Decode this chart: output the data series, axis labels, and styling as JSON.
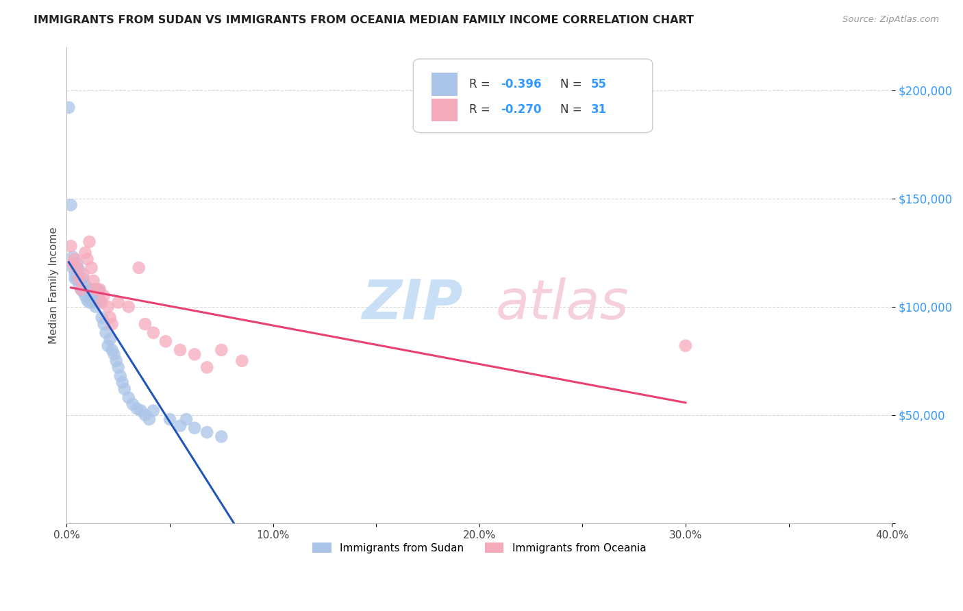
{
  "title": "IMMIGRANTS FROM SUDAN VS IMMIGRANTS FROM OCEANIA MEDIAN FAMILY INCOME CORRELATION CHART",
  "source": "Source: ZipAtlas.com",
  "ylabel": "Median Family Income",
  "xlim": [
    0.0,
    0.4
  ],
  "ylim": [
    0,
    220000
  ],
  "yticks": [
    0,
    50000,
    100000,
    150000,
    200000
  ],
  "ytick_labels": [
    "",
    "$50,000",
    "$100,000",
    "$150,000",
    "$200,000"
  ],
  "xtick_vals": [
    0.0,
    0.05,
    0.1,
    0.15,
    0.2,
    0.25,
    0.3,
    0.35,
    0.4
  ],
  "xtick_labels": [
    "0.0%",
    "",
    "10.0%",
    "",
    "20.0%",
    "",
    "30.0%",
    "",
    "40.0%"
  ],
  "background_color": "#ffffff",
  "grid_color": "#d8d8d8",
  "sudan_color": "#aac4e8",
  "oceania_color": "#f5aabc",
  "sudan_line_color": "#2255bb",
  "oceania_line_color": "#e84070",
  "watermark_zip_color": "#c8dff5",
  "watermark_atlas_color": "#f5d0dc",
  "sudan_points_x": [
    0.001,
    0.002,
    0.003,
    0.003,
    0.004,
    0.004,
    0.005,
    0.005,
    0.006,
    0.006,
    0.007,
    0.007,
    0.008,
    0.008,
    0.009,
    0.009,
    0.01,
    0.01,
    0.011,
    0.011,
    0.012,
    0.012,
    0.013,
    0.013,
    0.014,
    0.014,
    0.015,
    0.015,
    0.016,
    0.016,
    0.017,
    0.018,
    0.019,
    0.02,
    0.021,
    0.022,
    0.023,
    0.024,
    0.025,
    0.026,
    0.027,
    0.028,
    0.03,
    0.032,
    0.034,
    0.036,
    0.038,
    0.04,
    0.042,
    0.05,
    0.055,
    0.058,
    0.062,
    0.068,
    0.075
  ],
  "sudan_points_y": [
    192000,
    147000,
    123000,
    118000,
    115000,
    113000,
    120000,
    113000,
    117000,
    110000,
    112000,
    108000,
    113000,
    107000,
    110000,
    105000,
    108000,
    103000,
    106000,
    102000,
    108000,
    103000,
    107000,
    102000,
    108000,
    100000,
    108000,
    104000,
    107000,
    103000,
    95000,
    92000,
    88000,
    82000,
    85000,
    80000,
    78000,
    75000,
    72000,
    68000,
    65000,
    62000,
    58000,
    55000,
    53000,
    52000,
    50000,
    48000,
    52000,
    48000,
    45000,
    48000,
    44000,
    42000,
    40000
  ],
  "oceania_points_x": [
    0.002,
    0.003,
    0.004,
    0.005,
    0.006,
    0.007,
    0.008,
    0.009,
    0.01,
    0.011,
    0.012,
    0.013,
    0.014,
    0.016,
    0.017,
    0.018,
    0.02,
    0.021,
    0.022,
    0.025,
    0.03,
    0.035,
    0.038,
    0.042,
    0.048,
    0.055,
    0.062,
    0.068,
    0.075,
    0.085,
    0.3
  ],
  "oceania_points_y": [
    128000,
    120000,
    122000,
    118000,
    113000,
    108000,
    115000,
    125000,
    122000,
    130000,
    118000,
    112000,
    108000,
    108000,
    102000,
    105000,
    100000,
    95000,
    92000,
    102000,
    100000,
    118000,
    92000,
    88000,
    84000,
    80000,
    78000,
    72000,
    80000,
    75000,
    82000
  ]
}
